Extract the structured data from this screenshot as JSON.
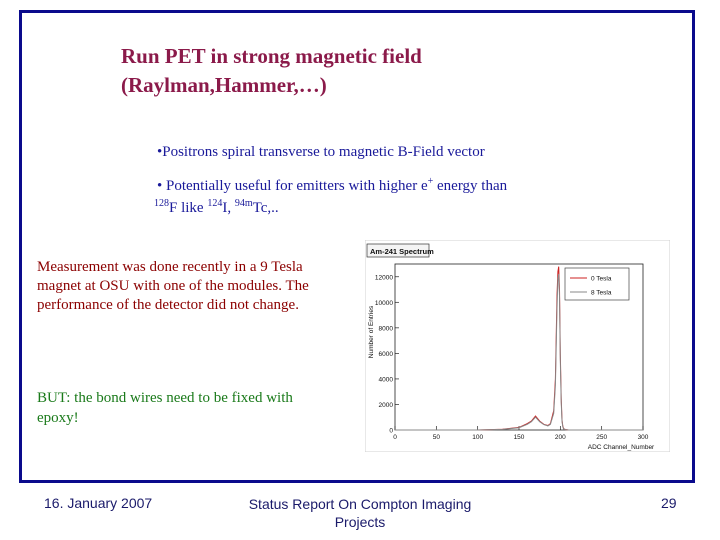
{
  "slide": {
    "title_line1": "Run PET in strong magnetic field",
    "title_line2": "(Raylman,Hammer,…)",
    "bullet1": "•Positrons spiral transverse to magnetic B-Field vector",
    "bullet2_a": "• Potentially useful for emitters with higher e",
    "bullet2_sup": "+",
    "bullet2_b": " energy than",
    "bullet2_iso1_mass": "128",
    "bullet2_iso1": "F like ",
    "bullet2_iso2_mass": "124",
    "bullet2_iso2": "I, ",
    "bullet2_iso3_mass": "94m",
    "bullet2_iso3": "Tc,..",
    "measurement": "Measurement was done recently in a 9 Tesla magnet at OSU with one of the modules. The performance of the detector did not change.",
    "but_note": "BUT: the bond wires need to be fixed with epoxy!"
  },
  "footer": {
    "date": "16. January 2007",
    "title": "Status Report On Compton Imaging Projects",
    "page": "29"
  },
  "chart_data": {
    "type": "line",
    "title": "Am-241 Spectrum",
    "xlabel": "ADC Channel_Number",
    "ylabel": "Number of Entries",
    "xlim": [
      0,
      300
    ],
    "ylim": [
      0,
      13000
    ],
    "x_ticks": [
      "0",
      "50",
      "100",
      "150",
      "200",
      "250",
      "300"
    ],
    "y_ticks": [
      "0",
      "2000",
      "4000",
      "6000",
      "8000",
      "10000",
      "12000"
    ],
    "legend_position": "top-right",
    "series": [
      {
        "name": "0 Tesla",
        "color": "#cc2222",
        "x": [
          0,
          60,
          100,
          130,
          150,
          160,
          165,
          170,
          175,
          180,
          185,
          188,
          192,
          194,
          196,
          197,
          198,
          199,
          200,
          201,
          202,
          203,
          204,
          206,
          210,
          230,
          260,
          300
        ],
        "values": [
          0,
          0,
          0,
          60,
          200,
          500,
          700,
          1100,
          700,
          450,
          350,
          500,
          1500,
          4000,
          10500,
          12400,
          12800,
          11000,
          6000,
          2500,
          800,
          300,
          100,
          40,
          0,
          0,
          0,
          0
        ]
      },
      {
        "name": "8 Tesla",
        "color": "#888888",
        "x": [
          0,
          60,
          100,
          130,
          150,
          160,
          165,
          170,
          175,
          180,
          185,
          188,
          192,
          194,
          196,
          197,
          198,
          199,
          200,
          201,
          202,
          203,
          204,
          206,
          210,
          230,
          260,
          300
        ],
        "values": [
          0,
          0,
          0,
          50,
          180,
          450,
          650,
          1000,
          650,
          420,
          320,
          450,
          1300,
          3500,
          9500,
          11800,
          12200,
          10500,
          5500,
          2200,
          700,
          250,
          80,
          30,
          0,
          0,
          0,
          0
        ]
      }
    ]
  }
}
